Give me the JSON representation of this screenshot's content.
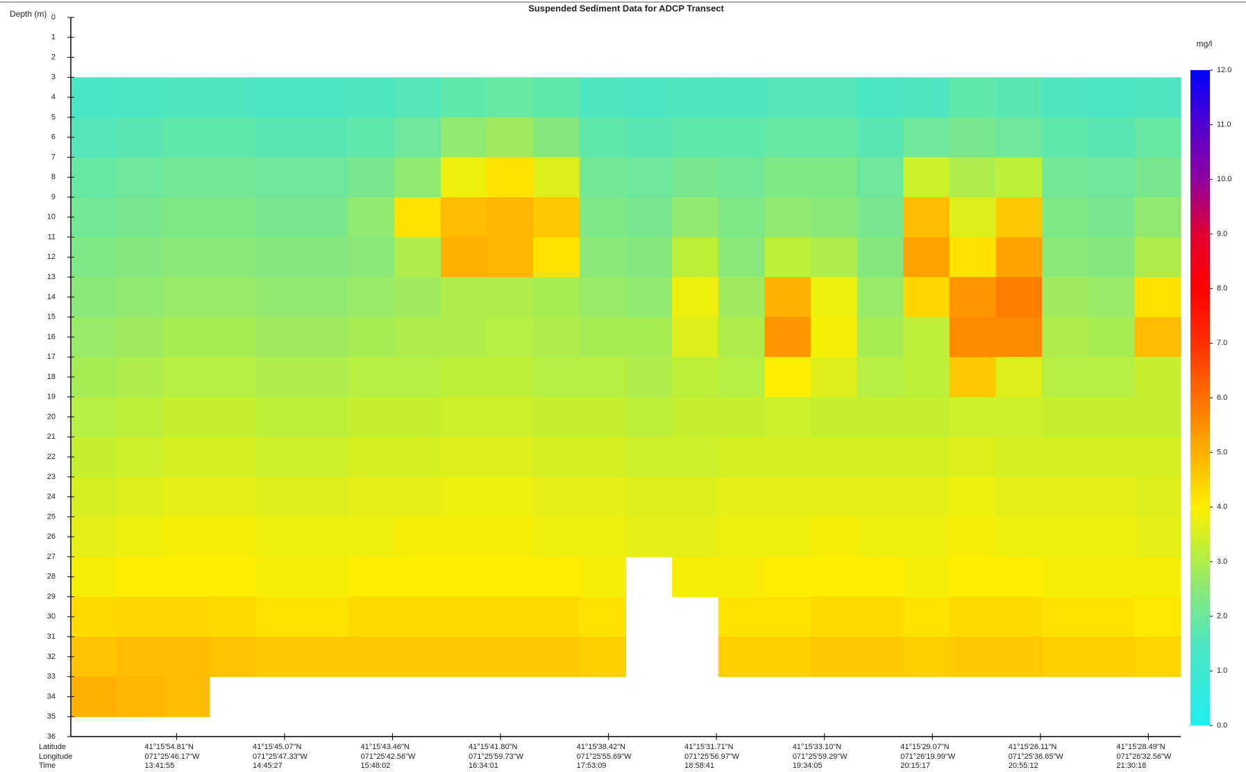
{
  "chart_data": {
    "type": "heatmap",
    "title": "Suspended Sediment Data for ADCP Transect",
    "y_label": "Depth (m)",
    "colorbar_label": "mg/l",
    "row_labels": [
      "Latitude",
      "Longitude",
      "Time"
    ],
    "x_ticks": [
      {
        "latitude": "41°15'54.81\"N",
        "longitude": "071°25'46.17\"W",
        "time": "13:41:55"
      },
      {
        "latitude": "41°15'45.07\"N",
        "longitude": "071°25'47.33\"W",
        "time": "14:45:27"
      },
      {
        "latitude": "41°15'43.46\"N",
        "longitude": "071°25'42.56\"W",
        "time": "15:48:02"
      },
      {
        "latitude": "41°15'41.80\"N",
        "longitude": "071°25'59.73\"W",
        "time": "16:34:01"
      },
      {
        "latitude": "41°15'38.42\"N",
        "longitude": "071°25'55.69\"W",
        "time": "17:53:09"
      },
      {
        "latitude": "41°15'31.71\"N",
        "longitude": "071°25'56.97\"W",
        "time": "18:58:41"
      },
      {
        "latitude": "41°15'33.10\"N",
        "longitude": "071°25'59.29\"W",
        "time": "19:34:05"
      },
      {
        "latitude": "41°15'29.07\"N",
        "longitude": "071°26'19.99\"W",
        "time": "20:15:17"
      },
      {
        "latitude": "41°15'26.11\"N",
        "longitude": "071°25'36.65\"W",
        "time": "20:55:12"
      },
      {
        "latitude": "41°15'28.49\"N",
        "longitude": "071°26'32.56\"W",
        "time": "21:30:18"
      }
    ],
    "ylim": [
      0,
      36
    ],
    "yticks": [
      0,
      1,
      2,
      3,
      4,
      5,
      6,
      7,
      8,
      9,
      10,
      11,
      12,
      13,
      14,
      15,
      16,
      17,
      18,
      19,
      20,
      21,
      22,
      23,
      24,
      25,
      26,
      27,
      28,
      29,
      30,
      31,
      32,
      33,
      34,
      35,
      36
    ],
    "y_reversed": true,
    "depth_bins": [
      3,
      5,
      7,
      9,
      11,
      13,
      15,
      17,
      19,
      21,
      23,
      25,
      27,
      29,
      31,
      33,
      35
    ],
    "zlim": [
      0,
      12
    ],
    "zticks": [
      {
        "value": 0,
        "label": "0.0"
      },
      {
        "value": 1,
        "label": "1.0"
      },
      {
        "value": 2,
        "label": "2.0"
      },
      {
        "value": 3,
        "label": "3.0"
      },
      {
        "value": 4,
        "label": "4.0"
      },
      {
        "value": 5,
        "label": "5.0"
      },
      {
        "value": 6,
        "label": "6.0"
      },
      {
        "value": 7,
        "label": "7.0"
      },
      {
        "value": 8,
        "label": "8.0"
      },
      {
        "value": 9,
        "label": "9.0"
      },
      {
        "value": 10,
        "label": "10.0"
      },
      {
        "value": 11,
        "label": "11.0"
      },
      {
        "value": 12,
        "label": "12.0"
      }
    ],
    "colorscale": [
      {
        "value": 0,
        "color": "#20eef0"
      },
      {
        "value": 1.5,
        "color": "#4ee6c0"
      },
      {
        "value": 2.5,
        "color": "#8ae878"
      },
      {
        "value": 3.3,
        "color": "#c4f030"
      },
      {
        "value": 4,
        "color": "#ffee00"
      },
      {
        "value": 5,
        "color": "#ffb000"
      },
      {
        "value": 6,
        "color": "#ff7000"
      },
      {
        "value": 7,
        "color": "#ff3000"
      },
      {
        "value": 8,
        "color": "#ff0000"
      },
      {
        "value": 9,
        "color": "#e00030"
      },
      {
        "value": 10,
        "color": "#9000a0"
      },
      {
        "value": 11,
        "color": "#5000d0"
      },
      {
        "value": 12,
        "color": "#0000ff"
      }
    ],
    "z": [
      [
        1.3,
        1.4,
        1.5,
        1.5,
        1.4,
        1.4,
        1.5,
        1.6,
        1.8,
        1.9,
        1.8,
        1.5,
        1.4,
        1.5,
        1.5,
        1.6,
        1.6,
        1.4,
        1.5,
        1.8,
        1.7,
        1.5,
        1.4,
        1.5
      ],
      [
        1.6,
        1.7,
        1.8,
        1.8,
        1.7,
        1.7,
        1.8,
        2.0,
        2.6,
        2.8,
        2.4,
        1.8,
        1.7,
        1.8,
        1.8,
        1.9,
        1.9,
        1.7,
        2.0,
        2.2,
        2.0,
        1.8,
        1.7,
        1.9
      ],
      [
        1.9,
        2.0,
        2.1,
        2.1,
        2.0,
        2.0,
        2.2,
        2.6,
        3.8,
        4.2,
        3.6,
        2.1,
        2.0,
        2.2,
        2.1,
        2.3,
        2.3,
        2.0,
        3.4,
        3.0,
        3.2,
        2.1,
        2.0,
        2.2
      ],
      [
        2.1,
        2.2,
        2.3,
        2.3,
        2.2,
        2.2,
        2.6,
        4.2,
        4.8,
        4.9,
        4.6,
        2.3,
        2.2,
        2.6,
        2.3,
        2.6,
        2.5,
        2.2,
        4.8,
        3.6,
        4.6,
        2.3,
        2.2,
        2.6
      ],
      [
        2.3,
        2.4,
        2.5,
        2.5,
        2.4,
        2.4,
        2.5,
        3.0,
        5.0,
        4.9,
        4.2,
        2.5,
        2.4,
        3.2,
        2.5,
        3.2,
        3.0,
        2.4,
        5.2,
        4.2,
        5.2,
        2.5,
        2.4,
        3.0
      ],
      [
        2.5,
        2.6,
        2.7,
        2.7,
        2.6,
        2.6,
        2.7,
        2.8,
        3.0,
        3.0,
        2.9,
        2.7,
        2.6,
        3.8,
        2.8,
        5.0,
        3.8,
        2.7,
        4.4,
        5.4,
        5.8,
        2.8,
        2.7,
        4.2
      ],
      [
        2.7,
        2.8,
        2.9,
        2.9,
        2.8,
        2.8,
        2.9,
        3.0,
        3.0,
        3.1,
        3.0,
        2.9,
        2.9,
        3.6,
        3.0,
        5.4,
        3.9,
        2.9,
        3.2,
        5.6,
        5.6,
        3.0,
        2.9,
        4.8
      ],
      [
        2.9,
        3.0,
        3.1,
        3.1,
        3.0,
        3.0,
        3.1,
        3.1,
        3.2,
        3.2,
        3.1,
        3.1,
        3.0,
        3.2,
        3.1,
        4.0,
        3.6,
        3.1,
        3.2,
        4.6,
        3.6,
        3.1,
        3.1,
        3.3
      ],
      [
        3.1,
        3.2,
        3.3,
        3.3,
        3.2,
        3.2,
        3.3,
        3.3,
        3.4,
        3.4,
        3.3,
        3.3,
        3.2,
        3.3,
        3.3,
        3.4,
        3.3,
        3.3,
        3.3,
        3.4,
        3.4,
        3.3,
        3.3,
        3.3
      ],
      [
        3.3,
        3.4,
        3.5,
        3.5,
        3.4,
        3.4,
        3.5,
        3.5,
        3.6,
        3.6,
        3.5,
        3.5,
        3.4,
        3.4,
        3.5,
        3.5,
        3.5,
        3.5,
        3.5,
        3.6,
        3.5,
        3.5,
        3.5,
        3.5
      ],
      [
        3.5,
        3.6,
        3.7,
        3.7,
        3.6,
        3.6,
        3.7,
        3.7,
        3.8,
        3.8,
        3.7,
        3.7,
        3.6,
        3.6,
        3.7,
        3.7,
        3.7,
        3.7,
        3.7,
        3.8,
        3.7,
        3.7,
        3.7,
        3.6
      ],
      [
        3.7,
        3.8,
        3.9,
        3.9,
        3.8,
        3.8,
        3.8,
        3.9,
        3.9,
        3.9,
        3.8,
        3.8,
        3.7,
        3.7,
        3.8,
        3.8,
        3.9,
        3.8,
        3.8,
        3.9,
        3.8,
        3.8,
        3.8,
        3.7
      ],
      [
        3.9,
        4.0,
        4.0,
        4.0,
        3.9,
        3.9,
        4.0,
        4.0,
        4.0,
        4.0,
        4.0,
        3.9,
        null,
        3.9,
        3.9,
        4.0,
        4.0,
        4.0,
        3.9,
        4.0,
        4.0,
        3.9,
        3.9,
        3.9
      ],
      [
        4.3,
        4.4,
        4.4,
        4.3,
        4.2,
        4.2,
        4.3,
        4.3,
        4.3,
        4.3,
        4.3,
        4.2,
        null,
        null,
        4.2,
        4.2,
        4.3,
        4.3,
        4.2,
        4.3,
        4.3,
        4.2,
        4.2,
        4.1
      ],
      [
        4.7,
        4.8,
        4.8,
        4.7,
        4.6,
        4.6,
        4.6,
        4.6,
        4.6,
        4.6,
        4.6,
        4.5,
        null,
        null,
        4.5,
        4.5,
        4.6,
        4.6,
        4.5,
        4.6,
        4.6,
        4.5,
        4.5,
        4.4
      ],
      [
        5.0,
        4.9,
        4.8,
        null,
        null,
        null,
        null,
        null,
        null,
        null,
        null,
        null,
        null,
        null,
        null,
        null,
        null,
        null,
        null,
        null,
        null,
        null,
        null,
        null
      ]
    ]
  }
}
